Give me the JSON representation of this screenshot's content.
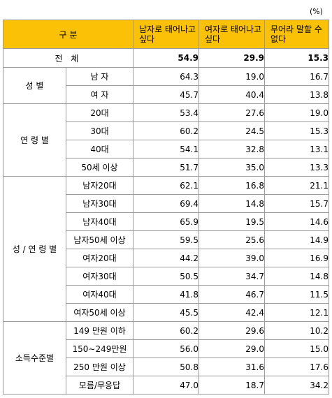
{
  "unit": "(%)",
  "header": {
    "category": "구 분",
    "columns": [
      "남자로 태어나고 싶다",
      "여자로 태어나고 싶다",
      "무어라 말할 수 없다"
    ]
  },
  "total": {
    "label": "전 체",
    "values": [
      "54.9",
      "29.9",
      "15.3"
    ]
  },
  "groups": [
    {
      "label": "성 별",
      "rows": [
        {
          "label": "남 자",
          "values": [
            "64.3",
            "19.0",
            "16.7"
          ]
        },
        {
          "label": "여 자",
          "values": [
            "45.7",
            "40.4",
            "13.8"
          ]
        }
      ]
    },
    {
      "label": "연 령 별",
      "rows": [
        {
          "label": "20대",
          "values": [
            "53.4",
            "27.6",
            "19.0"
          ]
        },
        {
          "label": "30대",
          "values": [
            "60.2",
            "24.5",
            "15.3"
          ]
        },
        {
          "label": "40대",
          "values": [
            "54.1",
            "32.8",
            "13.1"
          ]
        },
        {
          "label": "50세 이상",
          "values": [
            "51.7",
            "35.0",
            "13.3"
          ]
        }
      ]
    },
    {
      "label": "성 / 연 령 별",
      "rows": [
        {
          "label": "남자20대",
          "values": [
            "62.1",
            "16.8",
            "21.1"
          ]
        },
        {
          "label": "남자30대",
          "values": [
            "69.4",
            "14.8",
            "15.7"
          ]
        },
        {
          "label": "남자40대",
          "values": [
            "65.9",
            "19.5",
            "14.6"
          ]
        },
        {
          "label": "남자50세 이상",
          "values": [
            "59.5",
            "25.6",
            "14.9"
          ]
        },
        {
          "label": "여자20대",
          "values": [
            "44.2",
            "39.0",
            "16.9"
          ]
        },
        {
          "label": "여자30대",
          "values": [
            "50.5",
            "34.7",
            "14.8"
          ]
        },
        {
          "label": "여자40대",
          "values": [
            "41.8",
            "46.7",
            "11.5"
          ]
        },
        {
          "label": "여자50세 이상",
          "values": [
            "45.5",
            "42.4",
            "12.1"
          ]
        }
      ]
    },
    {
      "label": "소득수준별",
      "rows": [
        {
          "label": "149 만원 이하",
          "values": [
            "60.2",
            "29.6",
            "10.2"
          ]
        },
        {
          "label": "150∼249만원",
          "values": [
            "56.0",
            "29.0",
            "15.0"
          ]
        },
        {
          "label": "250 만원 이상",
          "values": [
            "50.8",
            "31.6",
            "17.6"
          ]
        },
        {
          "label": "모름/무응답",
          "values": [
            "47.0",
            "18.7",
            "34.2"
          ]
        }
      ]
    }
  ]
}
